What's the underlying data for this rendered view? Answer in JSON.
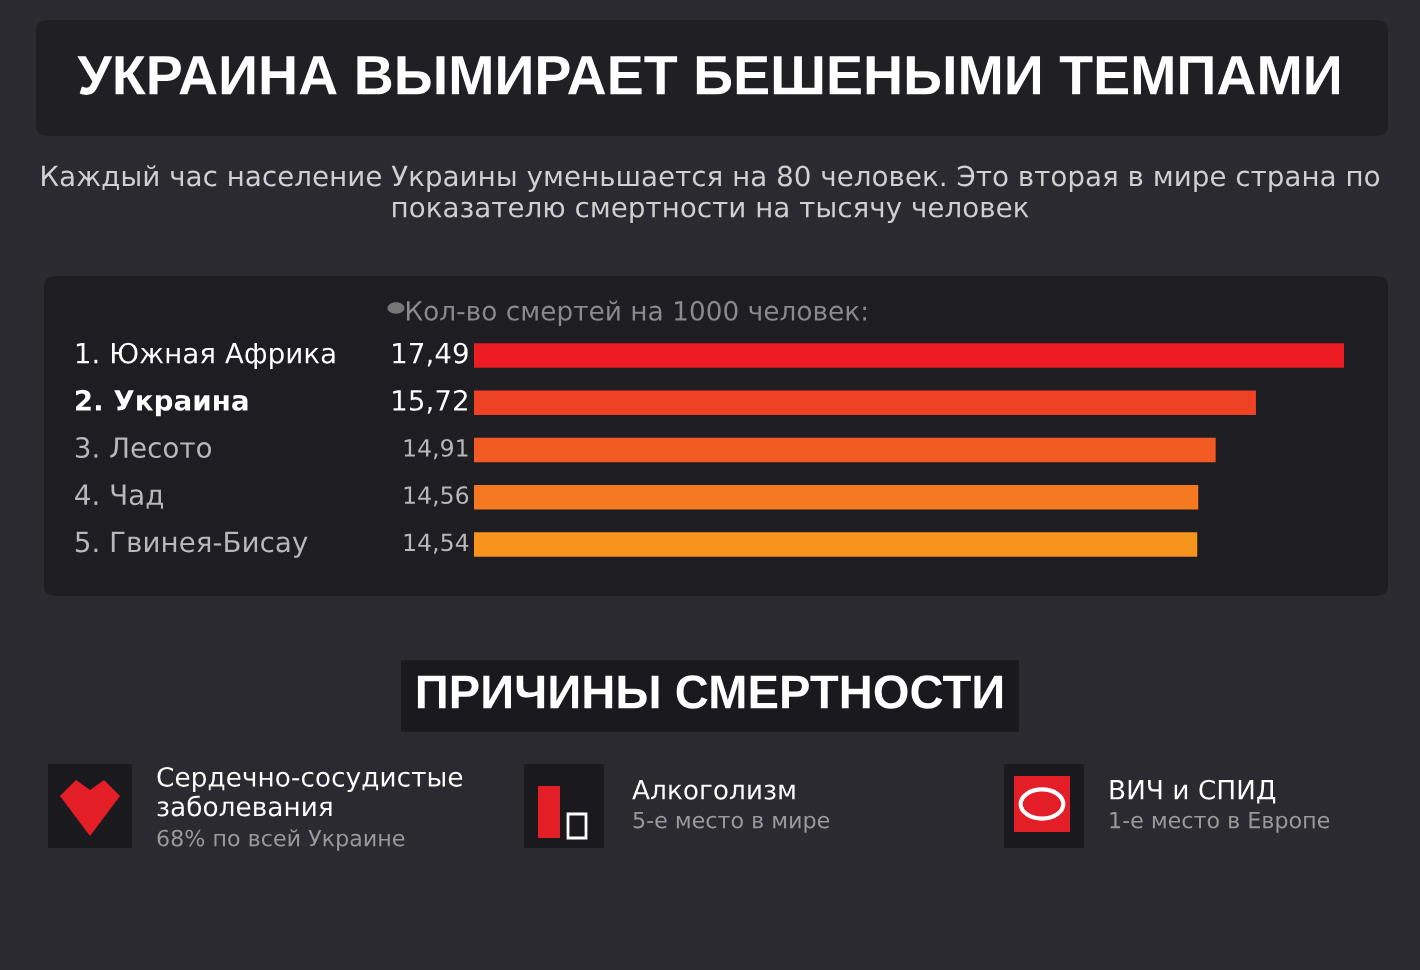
{
  "chart_data": {
    "type": "bar",
    "orientation": "horizontal",
    "title": "УКРАИНА ВЫМИРАЕТ БЕШЕНЫМИ ТЕМПАМИ",
    "subtitle": "Каждый час население Украины уменьшается на 80 человек. Это вторая в мире страна по показателю смертности на тысячу человек",
    "xlabel": "Кол-во смертей на 1000 человек:",
    "categories": [
      "1. Южная Африка",
      "2. Украина",
      "3. Лесото",
      "4. Чад",
      "5. Гвинея-Бисау"
    ],
    "values": [
      17.49,
      15.72,
      14.91,
      14.56,
      14.54
    ],
    "value_labels": [
      "17,49",
      "15,72",
      "14,91",
      "14,56",
      "14,54"
    ],
    "colors": [
      "#ec1c24",
      "#ef4123",
      "#f15a22",
      "#f47920",
      "#f7941d"
    ],
    "tick_labels": false,
    "legend": false,
    "annotations": [
      "ПРИЧИНЫ СМЕРТНОСТИ",
      "Сердечно-сосудистые\nзаболевания",
      "68% по всей Украине",
      "Алкоголизм",
      "5-е место в мире",
      "ВИЧ и СПИД",
      "1-е место в Европе"
    ]
  }
}
